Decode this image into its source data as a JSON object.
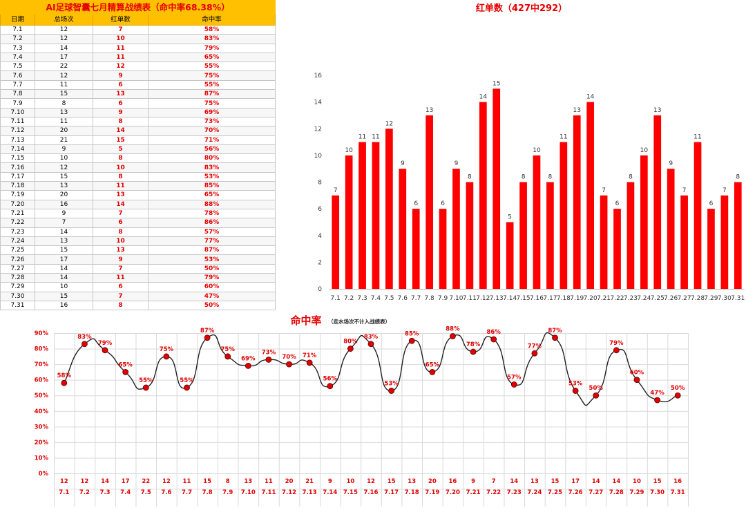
{
  "table": {
    "title": "AI足球智囊七月精算战绩表（命中率68.38%）",
    "headers": [
      "日期",
      "总场次",
      "红单数",
      "命中率"
    ],
    "rows": [
      [
        "7.1",
        "12",
        "7",
        "58%"
      ],
      [
        "7.2",
        "12",
        "10",
        "83%"
      ],
      [
        "7.3",
        "14",
        "11",
        "79%"
      ],
      [
        "7.4",
        "17",
        "11",
        "65%"
      ],
      [
        "7.5",
        "22",
        "12",
        "55%"
      ],
      [
        "7.6",
        "12",
        "9",
        "75%"
      ],
      [
        "7.7",
        "11",
        "6",
        "55%"
      ],
      [
        "7.8",
        "15",
        "13",
        "87%"
      ],
      [
        "7.9",
        "8",
        "6",
        "75%"
      ],
      [
        "7.10",
        "13",
        "9",
        "69%"
      ],
      [
        "7.11",
        "11",
        "8",
        "73%"
      ],
      [
        "7.12",
        "20",
        "14",
        "70%"
      ],
      [
        "7.13",
        "21",
        "15",
        "71%"
      ],
      [
        "7.14",
        "9",
        "5",
        "56%"
      ],
      [
        "7.15",
        "10",
        "8",
        "80%"
      ],
      [
        "7.16",
        "12",
        "10",
        "83%"
      ],
      [
        "7.17",
        "15",
        "8",
        "53%"
      ],
      [
        "7.18",
        "13",
        "11",
        "85%"
      ],
      [
        "7.19",
        "20",
        "13",
        "65%"
      ],
      [
        "7.20",
        "16",
        "14",
        "88%"
      ],
      [
        "7.21",
        "9",
        "7",
        "78%"
      ],
      [
        "7.22",
        "7",
        "6",
        "86%"
      ],
      [
        "7.23",
        "14",
        "8",
        "57%"
      ],
      [
        "7.24",
        "13",
        "10",
        "77%"
      ],
      [
        "7.25",
        "15",
        "13",
        "87%"
      ],
      [
        "7.26",
        "17",
        "9",
        "53%"
      ],
      [
        "7.27",
        "14",
        "7",
        "50%"
      ],
      [
        "7.28",
        "14",
        "11",
        "79%"
      ],
      [
        "7.29",
        "10",
        "6",
        "60%"
      ],
      [
        "7.30",
        "15",
        "7",
        "47%"
      ],
      [
        "7.31",
        "16",
        "8",
        "50%"
      ]
    ]
  },
  "chart_data": [
    {
      "type": "bar",
      "title": "红单数（427中292）",
      "categories": [
        "7.1",
        "7.2",
        "7.3",
        "7.4",
        "7.5",
        "7.6",
        "7.7",
        "7.8",
        "7.9",
        "7.10",
        "7.11",
        "7.12",
        "7.13",
        "7.14",
        "7.15",
        "7.16",
        "7.17",
        "7.18",
        "7.19",
        "7.20",
        "7.21",
        "7.22",
        "7.23",
        "7.24",
        "7.25",
        "7.26",
        "7.27",
        "7.28",
        "7.29",
        "7.30",
        "7.31"
      ],
      "values": [
        7,
        10,
        11,
        11,
        12,
        9,
        6,
        13,
        6,
        9,
        8,
        14,
        15,
        5,
        8,
        10,
        8,
        11,
        13,
        14,
        7,
        6,
        8,
        10,
        13,
        9,
        7,
        11,
        6,
        7,
        8
      ],
      "ylim": [
        0,
        16
      ],
      "yticks": [
        0,
        2,
        4,
        6,
        8,
        10,
        12,
        14,
        16
      ],
      "color": "#ff0000",
      "grid": false
    },
    {
      "type": "line",
      "title": "命中率",
      "subtitle": "（走水场次不计入战绩表）",
      "categories": [
        "7.1",
        "7.2",
        "7.3",
        "7.4",
        "7.5",
        "7.6",
        "7.7",
        "7.8",
        "7.9",
        "7.10",
        "7.11",
        "7.12",
        "7.13",
        "7.14",
        "7.15",
        "7.16",
        "7.17",
        "7.18",
        "7.19",
        "7.20",
        "7.21",
        "7.22",
        "7.23",
        "7.24",
        "7.25",
        "7.26",
        "7.27",
        "7.28",
        "7.29",
        "7.30",
        "7.31"
      ],
      "totals": [
        "12",
        "12",
        "14",
        "17",
        "22",
        "12",
        "11",
        "15",
        "8",
        "13",
        "11",
        "20",
        "21",
        "9",
        "10",
        "12",
        "15",
        "13",
        "20",
        "16",
        "9",
        "7",
        "14",
        "13",
        "15",
        "17",
        "14",
        "14",
        "10",
        "15",
        "16"
      ],
      "values": [
        58,
        83,
        79,
        65,
        55,
        75,
        55,
        87,
        75,
        69,
        73,
        70,
        71,
        56,
        80,
        83,
        53,
        85,
        65,
        88,
        78,
        86,
        57,
        77,
        87,
        53,
        50,
        79,
        60,
        47,
        50
      ],
      "labels": [
        "58%",
        "83%",
        "79%",
        "65%",
        "55%",
        "75%",
        "55%",
        "87%",
        "75%",
        "69%",
        "73%",
        "70%",
        "71%",
        "56%",
        "80%",
        "83%",
        "53%",
        "85%",
        "65%",
        "88%",
        "78%",
        "86%",
        "57%",
        "77%",
        "87%",
        "53%",
        "50%",
        "79%",
        "60%",
        "47%",
        "50%"
      ],
      "ylim": [
        0,
        90
      ],
      "yticks": [
        "0%",
        "10%",
        "20%",
        "30%",
        "40%",
        "50%",
        "60%",
        "70%",
        "80%",
        "90%"
      ],
      "line_color": "#222222",
      "marker_color": "#e00000",
      "label_color": "#e00000",
      "grid": true
    }
  ]
}
